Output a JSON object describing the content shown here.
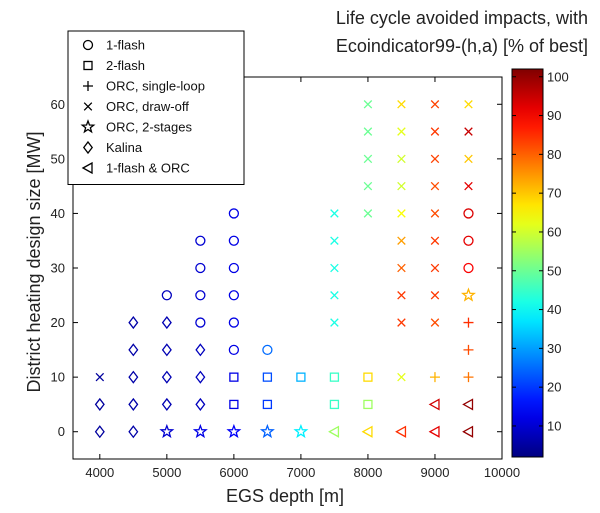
{
  "chart_data": {
    "type": "scatter",
    "title_lines": [
      "Life cycle avoided impacts, with",
      "Ecoindicator99-(h,a) [% of best]"
    ],
    "xlabel": "EGS depth [m]",
    "ylabel": "District heating design size [MW]",
    "xlim": [
      3600,
      10000
    ],
    "ylim": [
      -5,
      65
    ],
    "xticks": [
      4000,
      5000,
      6000,
      7000,
      8000,
      9000,
      10000
    ],
    "yticks": [
      0,
      10,
      20,
      30,
      40,
      50,
      60
    ],
    "colorbar": {
      "min": 2,
      "max": 102,
      "ticks": [
        10,
        20,
        30,
        40,
        50,
        60,
        70,
        80,
        90,
        100
      ],
      "colormap": "jet"
    },
    "legend": {
      "placement": "top-left",
      "entries": [
        {
          "marker": "circle",
          "label": "1-flash"
        },
        {
          "marker": "square",
          "label": "2-flash"
        },
        {
          "marker": "plus",
          "label": "ORC, single-loop"
        },
        {
          "marker": "x",
          "label": "ORC, draw-off"
        },
        {
          "marker": "star",
          "label": "ORC, 2-stages"
        },
        {
          "marker": "diamond",
          "label": "Kalina"
        },
        {
          "marker": "triangle-left",
          "label": "1-flash & ORC"
        }
      ]
    },
    "series": [
      {
        "name": "1-flash",
        "marker": "circle",
        "points": [
          {
            "x": 5000,
            "y": 25,
            "c": 8
          },
          {
            "x": 5500,
            "y": 20,
            "c": 10
          },
          {
            "x": 5500,
            "y": 25,
            "c": 10
          },
          {
            "x": 5500,
            "y": 30,
            "c": 10
          },
          {
            "x": 5500,
            "y": 35,
            "c": 10
          },
          {
            "x": 6000,
            "y": 15,
            "c": 12
          },
          {
            "x": 6000,
            "y": 20,
            "c": 12
          },
          {
            "x": 6000,
            "y": 25,
            "c": 12
          },
          {
            "x": 6000,
            "y": 30,
            "c": 12
          },
          {
            "x": 6000,
            "y": 35,
            "c": 12
          },
          {
            "x": 6000,
            "y": 40,
            "c": 12
          },
          {
            "x": 6500,
            "y": 15,
            "c": 25
          },
          {
            "x": 9500,
            "y": 30,
            "c": 90
          },
          {
            "x": 9500,
            "y": 35,
            "c": 92
          },
          {
            "x": 9500,
            "y": 40,
            "c": 93
          }
        ]
      },
      {
        "name": "2-flash",
        "marker": "square",
        "points": [
          {
            "x": 6000,
            "y": 5,
            "c": 12
          },
          {
            "x": 6000,
            "y": 10,
            "c": 12
          },
          {
            "x": 6500,
            "y": 5,
            "c": 20
          },
          {
            "x": 6500,
            "y": 10,
            "c": 22
          },
          {
            "x": 7000,
            "y": 10,
            "c": 32
          },
          {
            "x": 7500,
            "y": 5,
            "c": 45
          },
          {
            "x": 7500,
            "y": 10,
            "c": 45
          },
          {
            "x": 8000,
            "y": 5,
            "c": 55
          },
          {
            "x": 8000,
            "y": 10,
            "c": 68
          }
        ]
      },
      {
        "name": "ORC, single-loop",
        "marker": "plus",
        "points": [
          {
            "x": 9000,
            "y": 10,
            "c": 72
          },
          {
            "x": 9500,
            "y": 10,
            "c": 78
          },
          {
            "x": 9500,
            "y": 15,
            "c": 82
          },
          {
            "x": 9500,
            "y": 20,
            "c": 85
          }
        ]
      },
      {
        "name": "ORC, draw-off",
        "marker": "x",
        "points": [
          {
            "x": 4000,
            "y": 10,
            "c": 5
          },
          {
            "x": 7500,
            "y": 20,
            "c": 42
          },
          {
            "x": 7500,
            "y": 25,
            "c": 42
          },
          {
            "x": 7500,
            "y": 30,
            "c": 42
          },
          {
            "x": 7500,
            "y": 35,
            "c": 42
          },
          {
            "x": 7500,
            "y": 40,
            "c": 42
          },
          {
            "x": 8000,
            "y": 40,
            "c": 50
          },
          {
            "x": 8000,
            "y": 45,
            "c": 50
          },
          {
            "x": 8000,
            "y": 50,
            "c": 50
          },
          {
            "x": 8000,
            "y": 55,
            "c": 50
          },
          {
            "x": 8000,
            "y": 60,
            "c": 50
          },
          {
            "x": 8500,
            "y": 10,
            "c": 62
          },
          {
            "x": 8500,
            "y": 20,
            "c": 84
          },
          {
            "x": 8500,
            "y": 25,
            "c": 84
          },
          {
            "x": 8500,
            "y": 30,
            "c": 80
          },
          {
            "x": 8500,
            "y": 35,
            "c": 74
          },
          {
            "x": 8500,
            "y": 40,
            "c": 64
          },
          {
            "x": 8500,
            "y": 45,
            "c": 60
          },
          {
            "x": 8500,
            "y": 50,
            "c": 60
          },
          {
            "x": 8500,
            "y": 55,
            "c": 62
          },
          {
            "x": 8500,
            "y": 60,
            "c": 68
          },
          {
            "x": 9000,
            "y": 20,
            "c": 82
          },
          {
            "x": 9000,
            "y": 25,
            "c": 84
          },
          {
            "x": 9000,
            "y": 30,
            "c": 84
          },
          {
            "x": 9000,
            "y": 35,
            "c": 84
          },
          {
            "x": 9000,
            "y": 40,
            "c": 82
          },
          {
            "x": 9000,
            "y": 45,
            "c": 82
          },
          {
            "x": 9000,
            "y": 50,
            "c": 83
          },
          {
            "x": 9000,
            "y": 55,
            "c": 84
          },
          {
            "x": 9000,
            "y": 60,
            "c": 83
          },
          {
            "x": 9500,
            "y": 45,
            "c": 92
          },
          {
            "x": 9500,
            "y": 50,
            "c": 70
          },
          {
            "x": 9500,
            "y": 55,
            "c": 95
          },
          {
            "x": 9500,
            "y": 60,
            "c": 68
          }
        ]
      },
      {
        "name": "ORC, 2-stages",
        "marker": "star",
        "points": [
          {
            "x": 5000,
            "y": 0,
            "c": 10
          },
          {
            "x": 5500,
            "y": 0,
            "c": 12
          },
          {
            "x": 6000,
            "y": 0,
            "c": 14
          },
          {
            "x": 6500,
            "y": 0,
            "c": 24
          },
          {
            "x": 7000,
            "y": 0,
            "c": 38
          },
          {
            "x": 9500,
            "y": 25,
            "c": 72
          }
        ]
      },
      {
        "name": "Kalina",
        "marker": "diamond",
        "points": [
          {
            "x": 4000,
            "y": 0,
            "c": 5
          },
          {
            "x": 4000,
            "y": 5,
            "c": 5
          },
          {
            "x": 4500,
            "y": 0,
            "c": 6
          },
          {
            "x": 4500,
            "y": 5,
            "c": 6
          },
          {
            "x": 4500,
            "y": 10,
            "c": 6
          },
          {
            "x": 4500,
            "y": 15,
            "c": 6
          },
          {
            "x": 4500,
            "y": 20,
            "c": 6
          },
          {
            "x": 5000,
            "y": 5,
            "c": 7
          },
          {
            "x": 5000,
            "y": 10,
            "c": 7
          },
          {
            "x": 5000,
            "y": 15,
            "c": 7
          },
          {
            "x": 5000,
            "y": 20,
            "c": 7
          },
          {
            "x": 5500,
            "y": 5,
            "c": 8
          },
          {
            "x": 5500,
            "y": 10,
            "c": 8
          },
          {
            "x": 5500,
            "y": 15,
            "c": 8
          }
        ]
      },
      {
        "name": "1-flash & ORC",
        "marker": "triangle-left",
        "points": [
          {
            "x": 7500,
            "y": 0,
            "c": 55
          },
          {
            "x": 8000,
            "y": 0,
            "c": 68
          },
          {
            "x": 8500,
            "y": 0,
            "c": 85
          },
          {
            "x": 9000,
            "y": 0,
            "c": 92
          },
          {
            "x": 9000,
            "y": 5,
            "c": 94
          },
          {
            "x": 9500,
            "y": 0,
            "c": 100
          },
          {
            "x": 9500,
            "y": 5,
            "c": 100
          }
        ]
      }
    ]
  }
}
